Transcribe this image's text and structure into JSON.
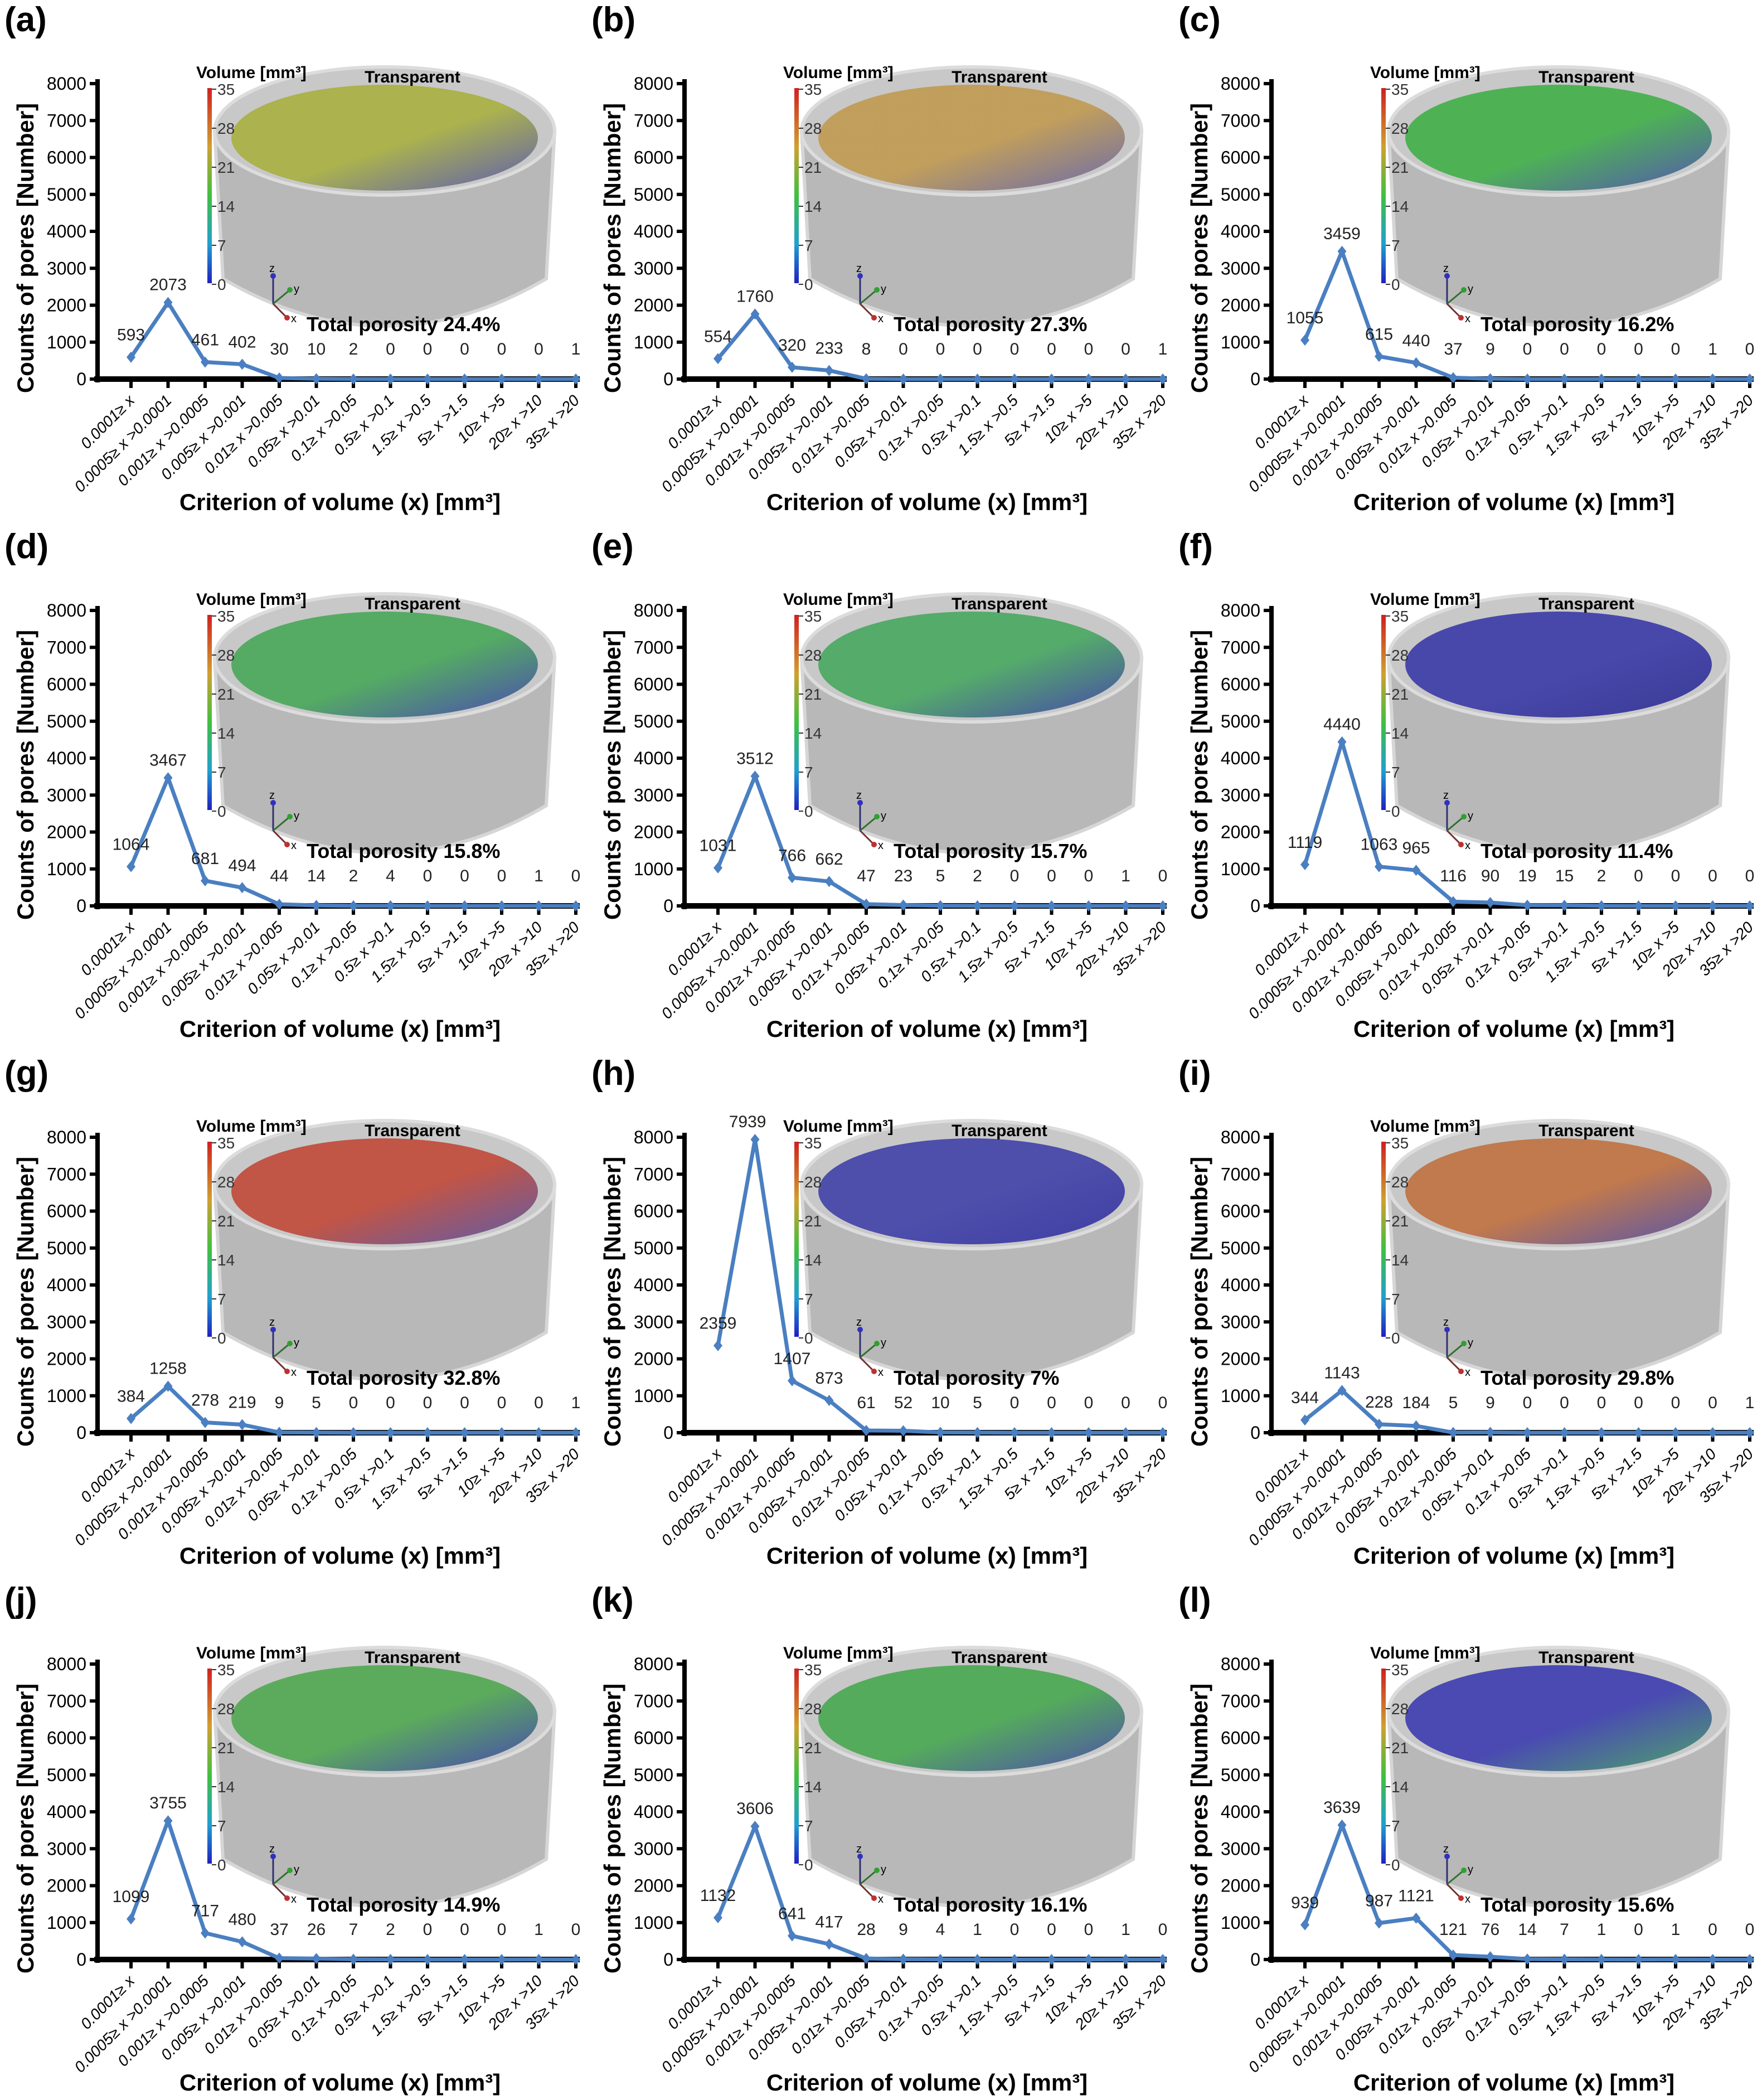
{
  "common": {
    "categories": [
      "0.0001≥ x",
      "0.0005≥ x >0.0001",
      "0.001≥ x >0.0005",
      "0.005≥ x >0.001",
      "0.01≥ x >0.005",
      "0.05≥ x >0.01",
      "0.1≥ x >0.05",
      "0.5≥ x >0.1",
      "1.5≥ x >0.5",
      "5≥ x >1.5",
      "10≥ x >5",
      "20≥ x >10",
      "35≥ x >20"
    ],
    "xlabel": "Criterion of volume (x) [mm³]",
    "ylabel": "Counts of pores [Number]",
    "yticks": [
      "0",
      "1000",
      "2000",
      "3000",
      "4000",
      "5000",
      "6000",
      "7000",
      "8000"
    ],
    "colorbar_title": "Volume [mm³]",
    "colorbar_ticks": [
      "35",
      "28",
      "21",
      "14",
      "7",
      "0"
    ],
    "render_label": "Transparent",
    "axis_triad": [
      "z",
      "y",
      "x"
    ],
    "line_color": "#4a7fc1"
  },
  "chart_data": [
    {
      "panel": "(a)",
      "type": "line",
      "ylim": [
        0,
        8000
      ],
      "values": [
        593,
        2073,
        461,
        402,
        30,
        10,
        2,
        0,
        0,
        0,
        0,
        0,
        1
      ],
      "porosity": "Total porosity 24.4%",
      "surface_colors": [
        "#a8b040",
        "#5050b0"
      ]
    },
    {
      "panel": "(b)",
      "type": "line",
      "ylim": [
        0,
        8000
      ],
      "values": [
        554,
        1760,
        320,
        233,
        8,
        0,
        0,
        0,
        0,
        0,
        0,
        0,
        1
      ],
      "porosity": "Total porosity 27.3%",
      "surface_colors": [
        "#c09a50",
        "#6060a8"
      ]
    },
    {
      "panel": "(c)",
      "type": "line",
      "ylim": [
        0,
        8000
      ],
      "values": [
        1055,
        3459,
        615,
        440,
        37,
        9,
        0,
        0,
        0,
        0,
        0,
        1,
        0
      ],
      "porosity": "Total porosity 16.2%",
      "surface_colors": [
        "#40b048",
        "#4848b0"
      ]
    },
    {
      "panel": "(d)",
      "type": "line",
      "ylim": [
        0,
        8000
      ],
      "values": [
        1064,
        3467,
        681,
        494,
        44,
        14,
        2,
        4,
        0,
        0,
        0,
        1,
        0
      ],
      "porosity": "Total porosity 15.8%",
      "surface_colors": [
        "#48a858",
        "#3c3cb0"
      ]
    },
    {
      "panel": "(e)",
      "type": "line",
      "ylim": [
        0,
        8000
      ],
      "values": [
        1031,
        3512,
        766,
        662,
        47,
        23,
        5,
        2,
        0,
        0,
        0,
        1,
        0
      ],
      "porosity": "Total porosity 15.7%",
      "surface_colors": [
        "#48a860",
        "#3838a8"
      ]
    },
    {
      "panel": "(f)",
      "type": "line",
      "ylim": [
        0,
        8000
      ],
      "values": [
        1119,
        4440,
        1063,
        965,
        116,
        90,
        19,
        15,
        2,
        0,
        0,
        0,
        0
      ],
      "porosity": "Total porosity 11.4%",
      "surface_colors": [
        "#3a3aa8",
        "#2a2a90"
      ]
    },
    {
      "panel": "(g)",
      "type": "line",
      "ylim": [
        0,
        8000
      ],
      "values": [
        384,
        1258,
        278,
        219,
        9,
        5,
        0,
        0,
        0,
        0,
        0,
        0,
        1
      ],
      "porosity": "Total porosity 32.8%",
      "surface_colors": [
        "#c04838",
        "#5050a8"
      ]
    },
    {
      "panel": "(h)",
      "type": "line",
      "ylim": [
        0,
        8000
      ],
      "values": [
        2359,
        7939,
        1407,
        873,
        61,
        52,
        10,
        5,
        0,
        0,
        0,
        0,
        0
      ],
      "porosity": "Total porosity 7%",
      "surface_colors": [
        "#4040a8",
        "#3030a0"
      ]
    },
    {
      "panel": "(i)",
      "type": "line",
      "ylim": [
        0,
        8000
      ],
      "values": [
        344,
        1143,
        228,
        184,
        5,
        9,
        0,
        0,
        0,
        0,
        0,
        0,
        1
      ],
      "porosity": "Total porosity 29.8%",
      "surface_colors": [
        "#c07040",
        "#4848a8"
      ]
    },
    {
      "panel": "(j)",
      "type": "line",
      "ylim": [
        0,
        8000
      ],
      "values": [
        1099,
        3755,
        717,
        480,
        37,
        26,
        7,
        2,
        0,
        0,
        0,
        1,
        0
      ],
      "porosity": "Total porosity 14.9%",
      "surface_colors": [
        "#50a850",
        "#3838b0"
      ]
    },
    {
      "panel": "(k)",
      "type": "line",
      "ylim": [
        0,
        8000
      ],
      "values": [
        1132,
        3606,
        641,
        417,
        28,
        9,
        4,
        1,
        0,
        0,
        0,
        1,
        0
      ],
      "porosity": "Total porosity 16.1%",
      "surface_colors": [
        "#48a850",
        "#4040a8"
      ]
    },
    {
      "panel": "(l)",
      "type": "line",
      "ylim": [
        0,
        8000
      ],
      "values": [
        939,
        3639,
        987,
        1121,
        121,
        76,
        14,
        7,
        1,
        0,
        1,
        0,
        0
      ],
      "porosity": "Total porosity 15.6%",
      "surface_colors": [
        "#3c3cb0",
        "#40a060"
      ]
    }
  ]
}
